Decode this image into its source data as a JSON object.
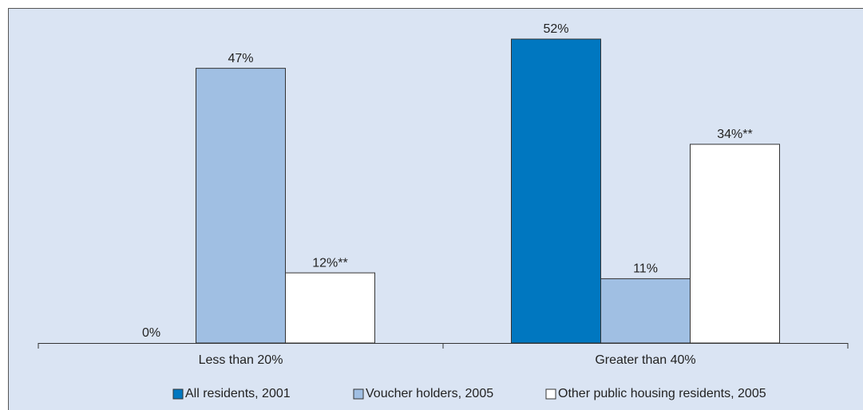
{
  "chart_data": {
    "type": "bar",
    "categories": [
      "Less than 20%",
      "Greater than 40%"
    ],
    "series": [
      {
        "name": "All residents, 2001",
        "color": "#0077c0",
        "values": [
          0,
          52
        ],
        "value_labels": [
          "0%",
          "52%"
        ]
      },
      {
        "name": "Voucher holders, 2005",
        "color": "#a0bfe3",
        "values": [
          47,
          11
        ],
        "value_labels": [
          "47%",
          "11%"
        ]
      },
      {
        "name": "Other public housing residents, 2005",
        "color": "#ffffff",
        "values": [
          12,
          34
        ],
        "value_labels": [
          "12%**",
          "34%**"
        ]
      }
    ],
    "legend": "bottom"
  }
}
